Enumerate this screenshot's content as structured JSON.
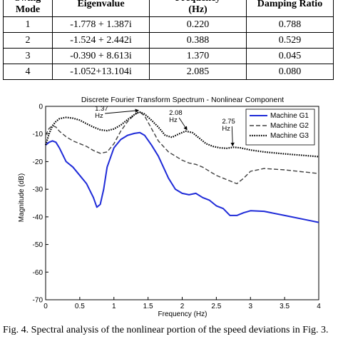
{
  "table": {
    "headers": [
      "Swing\nMode",
      "Eigenvalue",
      "Frequency\n(Hz)",
      "Damping Ratio"
    ],
    "rows": [
      [
        "1",
        "-1.778 + 1.387i",
        "0.220",
        "0.788"
      ],
      [
        "2",
        "-1.524 + 2.442i",
        "0.388",
        "0.529"
      ],
      [
        "3",
        "-0.390 + 8.613i",
        "1.370",
        "0.045"
      ],
      [
        "4",
        "-1.052+13.104i",
        "2.085",
        "0.080"
      ]
    ]
  },
  "chart_data": {
    "type": "line",
    "title": "Discrete Fourier Transform Spectrum - Nonlinear Component",
    "xlabel": "Frequency (Hz)",
    "ylabel": "Magnitude (dB)",
    "xlim": [
      0,
      4
    ],
    "ylim": [
      -70,
      0
    ],
    "xticks": [
      "0",
      "0.5",
      "1",
      "1.5",
      "2",
      "2.5",
      "3",
      "3.5",
      "4"
    ],
    "yticks": [
      "0",
      "-10",
      "-20",
      "-30",
      "-40",
      "-50",
      "-60",
      "-70"
    ],
    "grid": false,
    "legend_position": "top-right",
    "series": [
      {
        "name": "Machine G1",
        "style": "solid",
        "color": "#1f2bd8",
        "x": [
          0,
          0.05,
          0.1,
          0.15,
          0.2,
          0.3,
          0.4,
          0.5,
          0.6,
          0.7,
          0.75,
          0.8,
          0.85,
          0.9,
          1.0,
          1.1,
          1.2,
          1.3,
          1.38,
          1.45,
          1.55,
          1.65,
          1.8,
          1.9,
          2.0,
          2.1,
          2.2,
          2.3,
          2.4,
          2.5,
          2.6,
          2.7,
          2.8,
          2.9,
          3.0,
          3.2,
          3.5,
          3.8,
          4.0
        ],
        "y": [
          -14,
          -13,
          -12.5,
          -13,
          -15,
          -20,
          -22,
          -25,
          -28,
          -33,
          -36.5,
          -35.5,
          -30,
          -22,
          -15,
          -12,
          -10.5,
          -9.8,
          -9.5,
          -10.5,
          -14,
          -18,
          -26,
          -30,
          -31.5,
          -32,
          -31.5,
          -33,
          -34,
          -36,
          -37,
          -39.5,
          -39.5,
          -38.5,
          -37.8,
          -38,
          -39.5,
          -41,
          -42
        ]
      },
      {
        "name": "Machine G2",
        "style": "dashed",
        "color": "#404040",
        "x": [
          0,
          0.05,
          0.1,
          0.15,
          0.2,
          0.3,
          0.4,
          0.5,
          0.6,
          0.7,
          0.8,
          0.9,
          1.0,
          1.1,
          1.2,
          1.3,
          1.38,
          1.45,
          1.55,
          1.65,
          1.8,
          1.9,
          2.0,
          2.1,
          2.2,
          2.3,
          2.4,
          2.5,
          2.6,
          2.7,
          2.8,
          2.9,
          3.0,
          3.2,
          3.5,
          3.8,
          4.0
        ],
        "y": [
          -10.5,
          -8,
          -7,
          -7.5,
          -9,
          -11,
          -12.5,
          -13.5,
          -14.5,
          -16,
          -17,
          -16.5,
          -13.5,
          -9,
          -5.5,
          -3,
          -2,
          -3.5,
          -8,
          -12.5,
          -16.5,
          -18,
          -19.5,
          -20.5,
          -21,
          -22,
          -23.5,
          -25,
          -26,
          -27,
          -28,
          -26,
          -23.5,
          -22.5,
          -23,
          -23.8,
          -24.3
        ]
      },
      {
        "name": "Machine G3",
        "style": "dotted",
        "color": "#000000",
        "x": [
          0,
          0.05,
          0.1,
          0.15,
          0.2,
          0.25,
          0.3,
          0.4,
          0.5,
          0.6,
          0.7,
          0.8,
          0.9,
          1.0,
          1.1,
          1.2,
          1.3,
          1.37,
          1.45,
          1.55,
          1.65,
          1.75,
          1.85,
          1.95,
          2.05,
          2.15,
          2.25,
          2.35,
          2.45,
          2.55,
          2.65,
          2.75,
          2.85,
          3.0,
          3.2,
          3.5,
          3.8,
          4.0
        ],
        "y": [
          -14,
          -10,
          -7,
          -5.5,
          -4.5,
          -4.2,
          -4,
          -4.3,
          -5,
          -6.3,
          -7.5,
          -8.5,
          -8.8,
          -8.2,
          -6.8,
          -4.8,
          -3,
          -2,
          -2.8,
          -5,
          -7.5,
          -10.5,
          -11.2,
          -10,
          -9,
          -9.5,
          -11.5,
          -13.5,
          -14.5,
          -15,
          -15.2,
          -14.8,
          -15,
          -15.8,
          -16.5,
          -17.2,
          -17.8,
          -18.2
        ]
      }
    ],
    "annotations": [
      {
        "text": "1.37\nHz",
        "x": 1.37,
        "y": -2
      },
      {
        "text": "2.08\nHz",
        "x": 2.08,
        "y": -9
      },
      {
        "text": "2.75\nHz",
        "x": 2.75,
        "y": -14.8
      }
    ]
  },
  "caption": "Fig. 4. Spectral analysis of the nonlinear portion of the speed deviations in Fig. 3."
}
